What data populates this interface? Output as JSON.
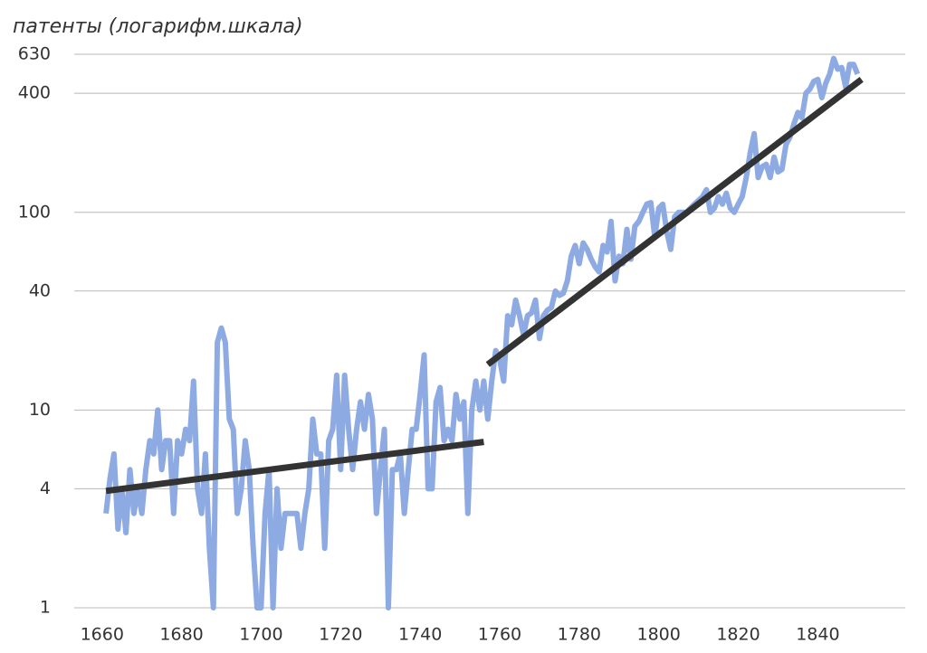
{
  "chart_data": {
    "type": "line",
    "y_label": "патенты (логарифм.шкала)",
    "log_scale_y": true,
    "grid": true,
    "xlim": [
      1653,
      1862
    ],
    "xticks": [
      1660,
      1680,
      1700,
      1720,
      1740,
      1760,
      1780,
      1800,
      1820,
      1840
    ],
    "ylim": [
      1,
      630
    ],
    "yticks": [
      1,
      4,
      10,
      40,
      100,
      400,
      630
    ],
    "series": [
      {
        "color": "#8eaae3",
        "x": [
          1661,
          1662,
          1663,
          1664,
          1665,
          1666,
          1667,
          1668,
          1669,
          1670,
          1671,
          1672,
          1673,
          1674,
          1675,
          1676,
          1677,
          1678,
          1679,
          1680,
          1681,
          1682,
          1683,
          1684,
          1685,
          1686,
          1687,
          1688,
          1689,
          1690,
          1691,
          1692,
          1693,
          1694,
          1695,
          1696,
          1697,
          1698,
          1699,
          1700,
          1701,
          1702,
          1703,
          1704,
          1705,
          1706,
          1707,
          1708,
          1709,
          1710,
          1711,
          1712,
          1713,
          1714,
          1715,
          1716,
          1717,
          1718,
          1719,
          1720,
          1721,
          1722,
          1723,
          1724,
          1725,
          1726,
          1727,
          1728,
          1729,
          1730,
          1731,
          1732,
          1733,
          1734,
          1735,
          1736,
          1737,
          1738,
          1739,
          1740,
          1741,
          1742,
          1743,
          1744,
          1745,
          1746,
          1747,
          1748,
          1749,
          1750,
          1751,
          1752,
          1753,
          1754,
          1755,
          1756,
          1757,
          1758,
          1759,
          1760,
          1761,
          1762,
          1763,
          1764,
          1765,
          1766,
          1767,
          1768,
          1769,
          1770,
          1771,
          1772,
          1773,
          1774,
          1775,
          1776,
          1777,
          1778,
          1779,
          1780,
          1781,
          1782,
          1783,
          1784,
          1785,
          1786,
          1787,
          1788,
          1789,
          1790,
          1791,
          1792,
          1793,
          1794,
          1795,
          1796,
          1797,
          1798,
          1799,
          1800,
          1801,
          1802,
          1803,
          1804,
          1805,
          1806,
          1807,
          1808,
          1809,
          1810,
          1811,
          1812,
          1813,
          1814,
          1815,
          1816,
          1817,
          1818,
          1819,
          1820,
          1821,
          1822,
          1823,
          1824,
          1825,
          1826,
          1827,
          1828,
          1829,
          1830,
          1831,
          1832,
          1833,
          1834,
          1835,
          1836,
          1837,
          1838,
          1839,
          1840,
          1841,
          1842,
          1843,
          1844,
          1845,
          1846,
          1847,
          1848,
          1849,
          1850
        ],
        "values": [
          3,
          4.5,
          6,
          2.5,
          4,
          2.4,
          5,
          3,
          4,
          3,
          5,
          7,
          6,
          10,
          5,
          7,
          7,
          3,
          7,
          6,
          8,
          7,
          14,
          4,
          3,
          6,
          2,
          1,
          22,
          26,
          22,
          9,
          8,
          3,
          4,
          7,
          5,
          2,
          1,
          1,
          3,
          5,
          1,
          4,
          2,
          3,
          3,
          3,
          3,
          2,
          3,
          4,
          9,
          6,
          6,
          2,
          7,
          8,
          15,
          5,
          15,
          8,
          5,
          8,
          11,
          8,
          12,
          9,
          3,
          5,
          8,
          1,
          5,
          5,
          6,
          3,
          5,
          8,
          8,
          12,
          19,
          4,
          4,
          11,
          13,
          7,
          8,
          7,
          12,
          9,
          11,
          3,
          10,
          14,
          10,
          14,
          9,
          14,
          20,
          18,
          14,
          30,
          27,
          36,
          30,
          24,
          30,
          31,
          36,
          23,
          30,
          32,
          33,
          40,
          38,
          39,
          45,
          60,
          68,
          55,
          70,
          65,
          58,
          53,
          50,
          68,
          63,
          90,
          45,
          60,
          55,
          82,
          58,
          85,
          90,
          100,
          110,
          112,
          75,
          105,
          110,
          80,
          65,
          95,
          100,
          100,
          100,
          105,
          110,
          115,
          120,
          130,
          100,
          105,
          120,
          110,
          125,
          105,
          100,
          110,
          120,
          150,
          200,
          250,
          150,
          170,
          175,
          150,
          190,
          160,
          165,
          220,
          240,
          280,
          320,
          300,
          400,
          420,
          460,
          470,
          380,
          450,
          500,
          600,
          530,
          540,
          430,
          560,
          560,
          500
        ]
      },
      {
        "color": "#333333",
        "x": [
          1661,
          1756
        ],
        "values": [
          3.9,
          6.9
        ]
      },
      {
        "color": "#333333",
        "x": [
          1757,
          1851
        ],
        "values": [
          17,
          470
        ]
      }
    ]
  }
}
